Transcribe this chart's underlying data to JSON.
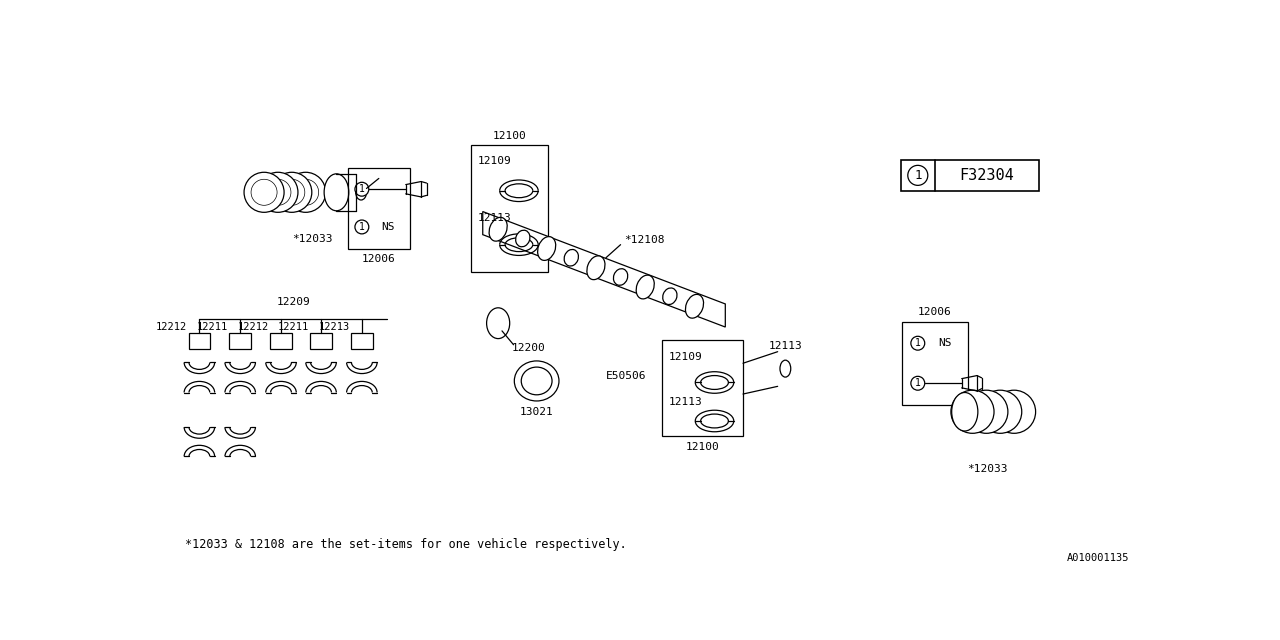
{
  "bg_color": "#ffffff",
  "line_color": "#000000",
  "font_family": "monospace",
  "footnote": "*12033 & 12108 are the set-items for one vehicle respectively.",
  "diagram_id": "A010001135",
  "legend_text": "F32304"
}
